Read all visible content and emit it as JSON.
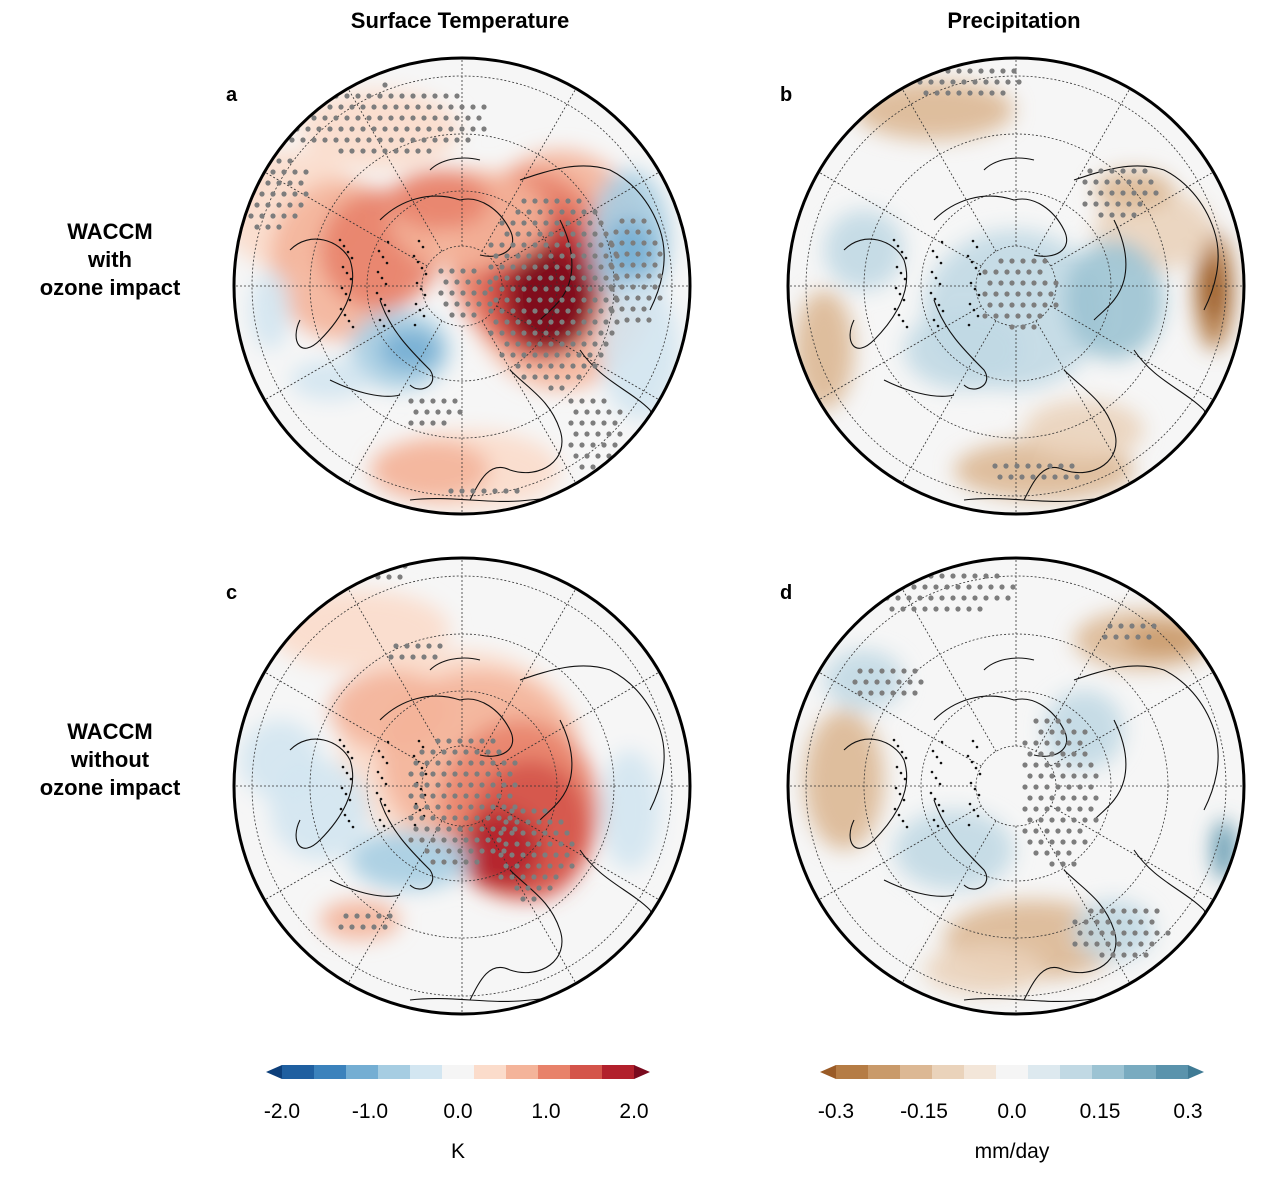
{
  "column_titles": [
    "Surface Temperature",
    "Precipitation"
  ],
  "row_labels": [
    [
      "WACCM",
      "with",
      "ozone impact"
    ],
    [
      "WACCM",
      "without",
      "ozone impact"
    ]
  ],
  "panels": [
    {
      "letter": "a",
      "variable": "temperature"
    },
    {
      "letter": "b",
      "variable": "precipitation"
    },
    {
      "letter": "c",
      "variable": "temperature"
    },
    {
      "letter": "d",
      "variable": "precipitation"
    }
  ],
  "colorbars": [
    {
      "unit": "K",
      "ticks": [
        "-2.0",
        "-1.0",
        "0.0",
        "1.0",
        "2.0"
      ],
      "range": [
        -2.0,
        2.0
      ],
      "colors": [
        "#0d3f7a",
        "#1f5fa0",
        "#3b82bc",
        "#74aed3",
        "#a6cde2",
        "#d3e6f1",
        "#f5f5f5",
        "#fbdccb",
        "#f4b49a",
        "#e8826a",
        "#d4544a",
        "#b2202c",
        "#7a0a1e"
      ]
    },
    {
      "unit": "mm/day",
      "ticks": [
        "-0.3",
        "-0.15",
        "0.0",
        "0.15",
        "0.3"
      ],
      "range": [
        -0.3,
        0.3
      ],
      "colors": [
        "#9a5b27",
        "#b57c45",
        "#c99a6a",
        "#dcb894",
        "#ead3bb",
        "#f3e6d9",
        "#f5f5f5",
        "#dde9ef",
        "#c1d9e4",
        "#9cc3d3",
        "#79abc0",
        "#5a93ac",
        "#3f7a94"
      ]
    }
  ]
}
